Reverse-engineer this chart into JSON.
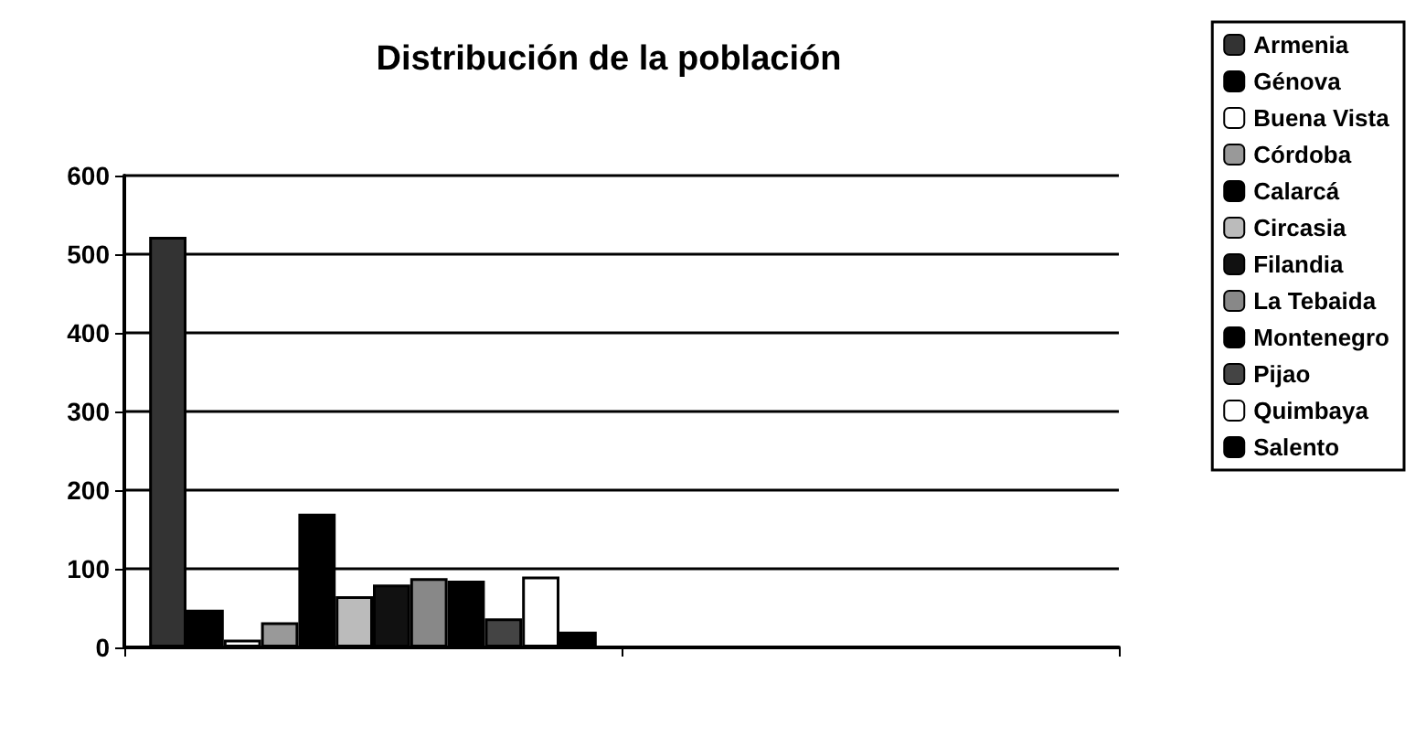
{
  "chart_data": {
    "type": "bar",
    "title": "Distribución de la población",
    "categories": [
      null,
      null
    ],
    "series": [
      {
        "name": "Armenia",
        "color": "#333333",
        "values": [
          522,
          null
        ]
      },
      {
        "name": "Génova",
        "color": "#000000",
        "values": [
          48,
          null
        ]
      },
      {
        "name": "Buena Vista",
        "color": "#ffffff",
        "values": [
          10,
          null
        ]
      },
      {
        "name": "Córdoba",
        "color": "#999999",
        "values": [
          32,
          null
        ]
      },
      {
        "name": "Calarcá",
        "color": "#000000",
        "values": [
          170,
          null
        ]
      },
      {
        "name": "Circasia",
        "color": "#bbbbbb",
        "values": [
          65,
          null
        ]
      },
      {
        "name": "Filandia",
        "color": "#111111",
        "values": [
          80,
          null
        ]
      },
      {
        "name": "La Tebaida",
        "color": "#888888",
        "values": [
          88,
          null
        ]
      },
      {
        "name": "Montenegro",
        "color": "#000000",
        "values": [
          85,
          null
        ]
      },
      {
        "name": "Pijao",
        "color": "#444444",
        "values": [
          37,
          null
        ]
      },
      {
        "name": "Quimbaya",
        "color": "#ffffff",
        "values": [
          90,
          null
        ]
      },
      {
        "name": "Salento",
        "color": "#000000",
        "values": [
          20,
          null
        ]
      }
    ],
    "ylim": [
      0,
      600
    ],
    "yticks": [
      0,
      100,
      200,
      300,
      400,
      500,
      600
    ],
    "grid": "y",
    "legend": "right"
  }
}
